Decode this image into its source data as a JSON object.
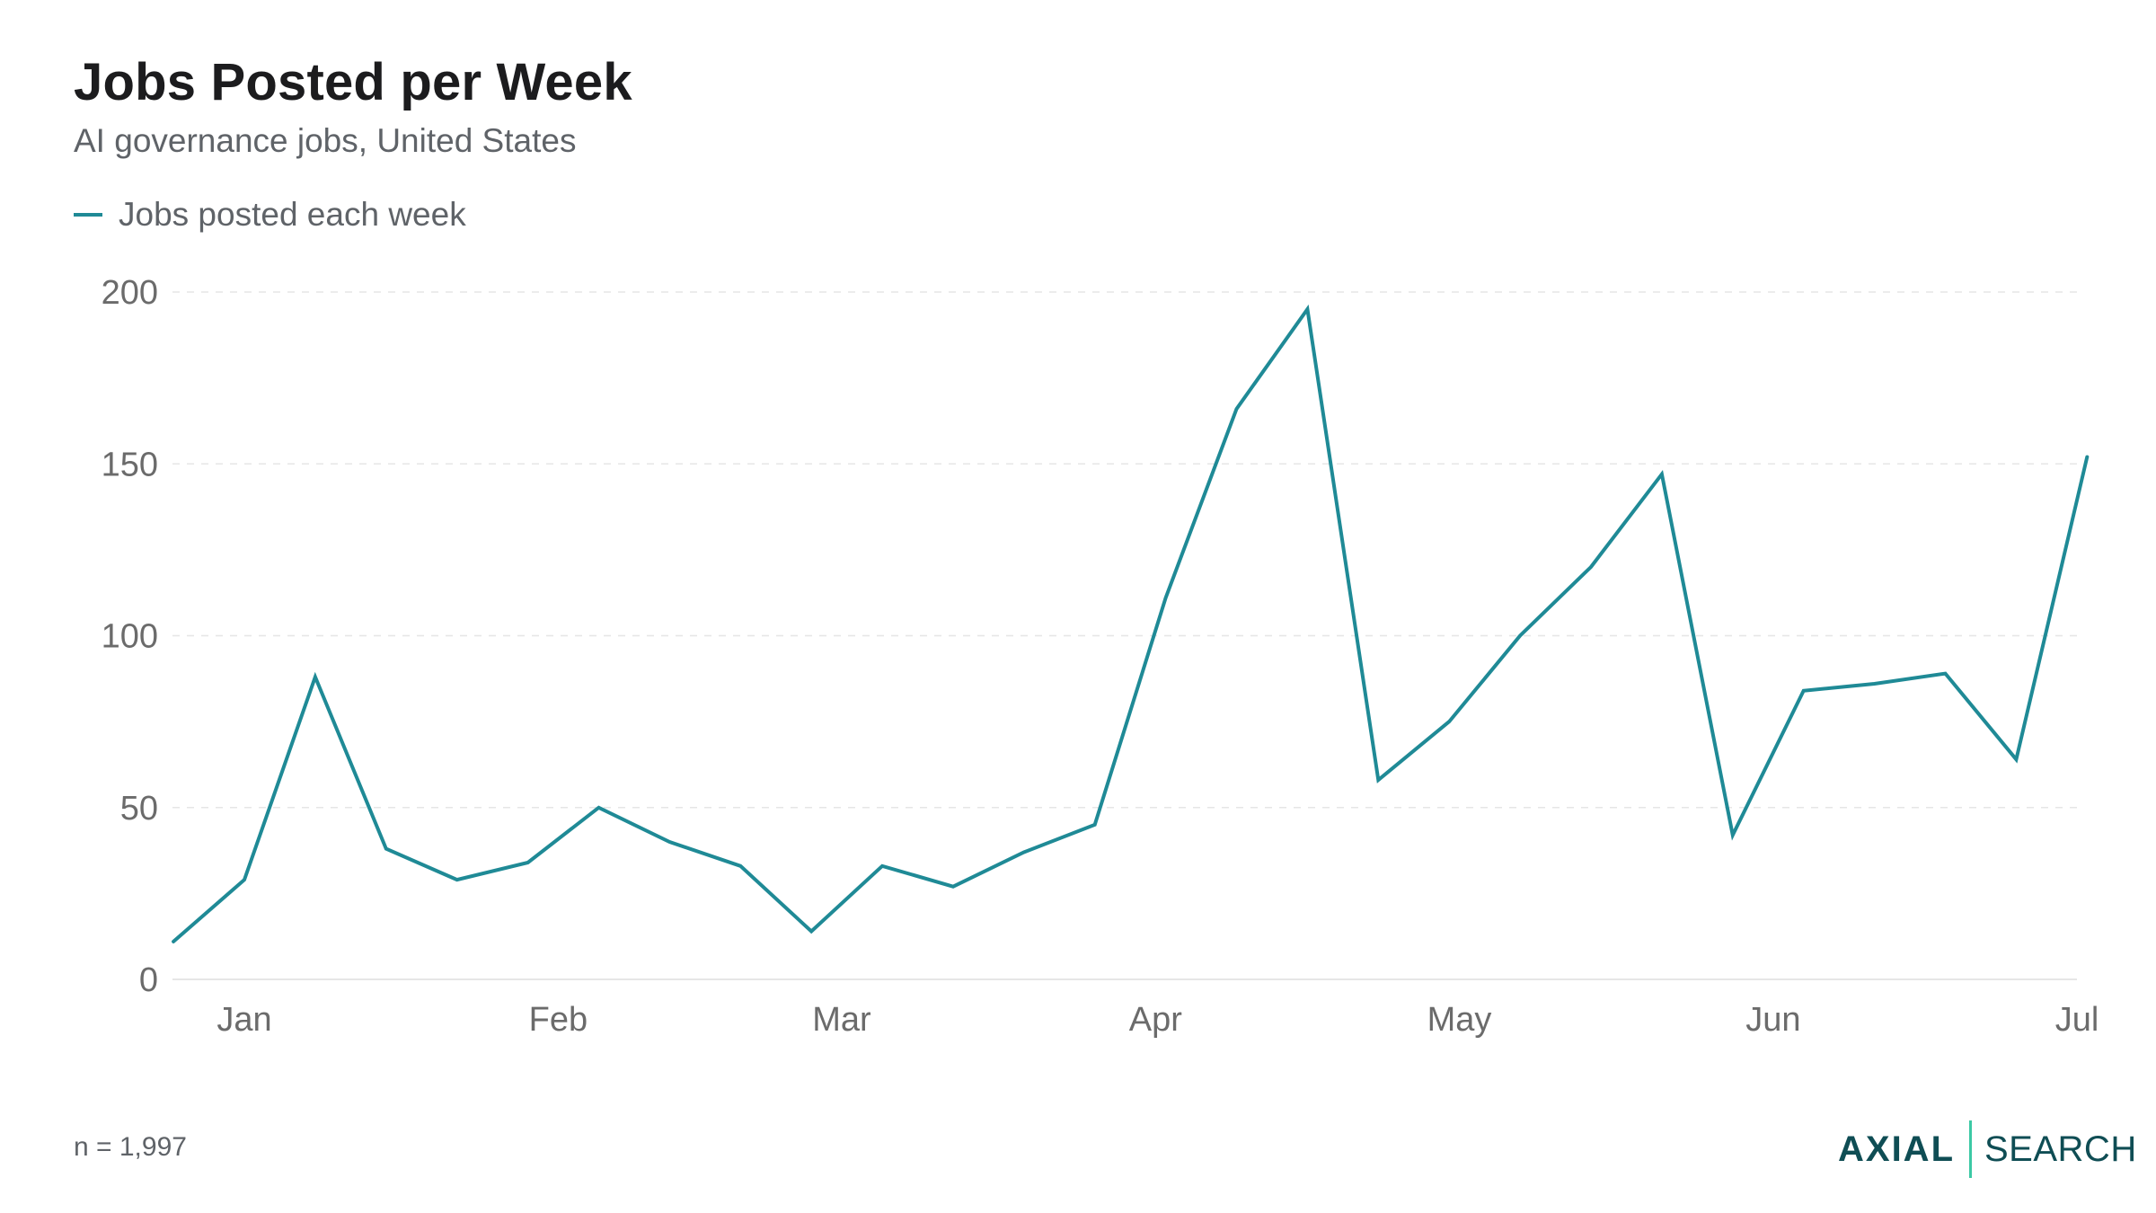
{
  "colors": {
    "line": "#1f8a96",
    "grid": "#e6e6e6",
    "axis_text": "#6b6b6b",
    "title": "#1c1c1e",
    "brand": "#0f4d54",
    "brand_accent": "#3cc9a5"
  },
  "footnote": "n = 1,997",
  "brand": {
    "primary": "AXIAL",
    "secondary": "SEARCH"
  },
  "chart_data": {
    "type": "line",
    "title": "Jobs Posted per Week",
    "subtitle": "AI governance jobs, United States",
    "xlabel": "",
    "ylabel": "",
    "x_unit": "week",
    "legend": {
      "position": "top-left",
      "entries": [
        "Jobs posted each week"
      ]
    },
    "grid": {
      "horizontal": true,
      "vertical": false,
      "style": "dashed"
    },
    "ylim": [
      0,
      200
    ],
    "yticks": [
      0,
      50,
      100,
      150,
      200
    ],
    "x_range": [
      "2025-01-01",
      "2025-07-01"
    ],
    "xticks": [
      {
        "date": "2025-01-01",
        "label": "Jan"
      },
      {
        "date": "2025-02-01",
        "label": "Feb"
      },
      {
        "date": "2025-03-01",
        "label": "Mar"
      },
      {
        "date": "2025-04-01",
        "label": "Apr"
      },
      {
        "date": "2025-05-01",
        "label": "May"
      },
      {
        "date": "2025-06-01",
        "label": "Jun"
      },
      {
        "date": "2025-07-01",
        "label": "Jul"
      }
    ],
    "series": [
      {
        "name": "Jobs posted each week",
        "points": [
          {
            "x": "2024-12-25",
            "y": 11
          },
          {
            "x": "2025-01-01",
            "y": 29
          },
          {
            "x": "2025-01-08",
            "y": 88
          },
          {
            "x": "2025-01-15",
            "y": 38
          },
          {
            "x": "2025-01-22",
            "y": 29
          },
          {
            "x": "2025-01-29",
            "y": 34
          },
          {
            "x": "2025-02-05",
            "y": 50
          },
          {
            "x": "2025-02-12",
            "y": 40
          },
          {
            "x": "2025-02-19",
            "y": 33
          },
          {
            "x": "2025-02-26",
            "y": 14
          },
          {
            "x": "2025-03-05",
            "y": 33
          },
          {
            "x": "2025-03-12",
            "y": 27
          },
          {
            "x": "2025-03-19",
            "y": 37
          },
          {
            "x": "2025-03-26",
            "y": 45
          },
          {
            "x": "2025-04-02",
            "y": 111
          },
          {
            "x": "2025-04-09",
            "y": 166
          },
          {
            "x": "2025-04-16",
            "y": 195
          },
          {
            "x": "2025-04-23",
            "y": 58
          },
          {
            "x": "2025-04-30",
            "y": 75
          },
          {
            "x": "2025-05-07",
            "y": 100
          },
          {
            "x": "2025-05-14",
            "y": 120
          },
          {
            "x": "2025-05-21",
            "y": 147
          },
          {
            "x": "2025-05-28",
            "y": 42
          },
          {
            "x": "2025-06-04",
            "y": 84
          },
          {
            "x": "2025-06-11",
            "y": 86
          },
          {
            "x": "2025-06-18",
            "y": 89
          },
          {
            "x": "2025-06-25",
            "y": 64
          },
          {
            "x": "2025-07-02",
            "y": 152
          }
        ]
      }
    ]
  }
}
